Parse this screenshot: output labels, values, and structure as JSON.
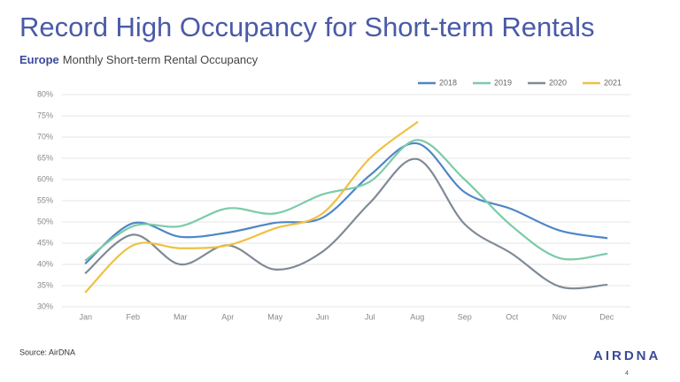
{
  "chart_data": {
    "type": "line",
    "title": "Record High Occupancy for Short-term Rentals",
    "subtitle_region": "Europe",
    "subtitle": "Monthly Short-term Rental Occupancy",
    "categories": [
      "Jan",
      "Feb",
      "Mar",
      "Apr",
      "May",
      "Jun",
      "Jul",
      "Aug",
      "Sep",
      "Oct",
      "Nov",
      "Dec"
    ],
    "series": [
      {
        "name": "2018",
        "color": "#4f86c6",
        "values": [
          40.3,
          49.7,
          46.5,
          47.5,
          49.8,
          51,
          61,
          68.5,
          57,
          53,
          48,
          46.2
        ]
      },
      {
        "name": "2019",
        "color": "#7ccba8",
        "values": [
          41,
          49,
          49,
          53.2,
          52,
          56.5,
          59.5,
          69.3,
          60,
          49,
          41.5,
          42.5
        ]
      },
      {
        "name": "2020",
        "color": "#7f8a96",
        "values": [
          38,
          47,
          40,
          44.5,
          38.8,
          43,
          54.5,
          64.8,
          49.5,
          42.5,
          34.8,
          35.2
        ]
      },
      {
        "name": "2021",
        "color": "#f0c040",
        "values": [
          33.5,
          44.5,
          43.8,
          44.5,
          48.5,
          52,
          65,
          73.5,
          null,
          null,
          null,
          null
        ]
      }
    ],
    "ylim": [
      30,
      80
    ],
    "yticks": [
      {
        "value": 30,
        "label": "30%"
      },
      {
        "value": 35,
        "label": "35%"
      },
      {
        "value": 40,
        "label": "40%"
      },
      {
        "value": 45,
        "label": "45%"
      },
      {
        "value": 50,
        "label": "50%"
      },
      {
        "value": 55,
        "label": "55%"
      },
      {
        "value": 60,
        "label": "60%"
      },
      {
        "value": 65,
        "label": "65%"
      },
      {
        "value": 70,
        "label": "70%"
      },
      {
        "value": 75,
        "label": "75%"
      },
      {
        "value": 80,
        "label": "80%"
      }
    ],
    "grid": true,
    "legend": "top-right"
  },
  "source": "Source: AirDNA",
  "logo": "AIRDNA",
  "page_number": 4
}
